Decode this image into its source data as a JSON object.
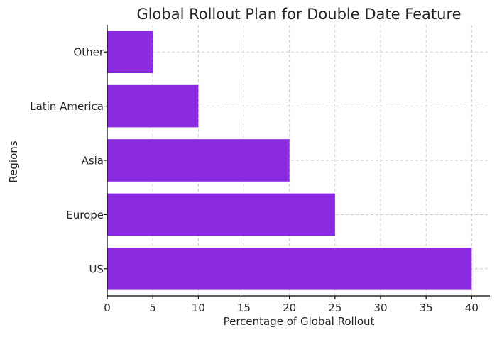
{
  "chart_data": {
    "type": "bar",
    "orientation": "horizontal",
    "title": "Global Rollout Plan for Double Date Feature",
    "xlabel": "Percentage of Global Rollout",
    "ylabel": "Regions",
    "categories": [
      "US",
      "Europe",
      "Asia",
      "Latin America",
      "Other"
    ],
    "values": [
      40,
      25,
      20,
      10,
      5
    ],
    "xlim": [
      0,
      42
    ],
    "xticks": [
      0,
      5,
      10,
      15,
      20,
      25,
      30,
      35,
      40
    ],
    "grid": true,
    "bar_color": "#8a2be2"
  }
}
